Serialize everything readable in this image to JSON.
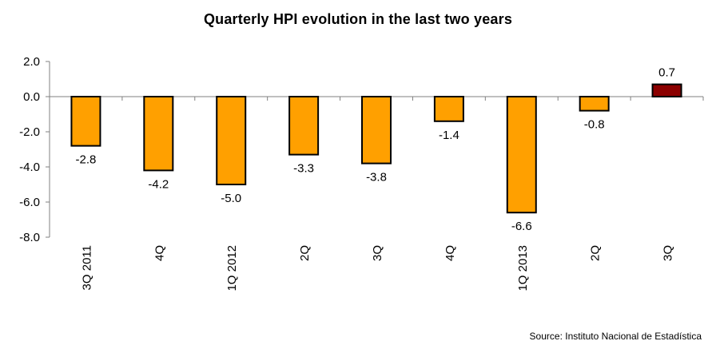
{
  "chart_data": {
    "type": "bar",
    "title": "Quarterly HPI evolution in the last two years",
    "categories": [
      "3Q 2011",
      "4Q",
      "1Q 2012",
      "2Q",
      "3Q",
      "4Q",
      "1Q 2013",
      "2Q",
      "3Q"
    ],
    "values": [
      -2.8,
      -4.2,
      -5.0,
      -3.3,
      -3.8,
      -1.4,
      -6.6,
      -0.8,
      0.7
    ],
    "data_labels": [
      "-2.8",
      "-4.2",
      "-5.0",
      "-3.3",
      "-3.8",
      "-1.4",
      "-6.6",
      "-0.8",
      "0.7"
    ],
    "ylim": [
      -8.0,
      2.0
    ],
    "yticks": [
      2.0,
      0.0,
      -2.0,
      -4.0,
      -6.0,
      -8.0
    ],
    "ytick_labels": [
      "2.0",
      "0.0",
      "-2.0",
      "-4.0",
      "-6.0",
      "-8.0"
    ],
    "xlabel": "",
    "ylabel": "",
    "grid": false,
    "legend": false,
    "colors": {
      "negative_bar": "#FFA000",
      "highlight_bar": "#8B0000",
      "bar_outline": "#000000",
      "axis": "#808080"
    },
    "highlight_index": 8
  },
  "source_note": "Source: Instituto Nacional de Estadística"
}
